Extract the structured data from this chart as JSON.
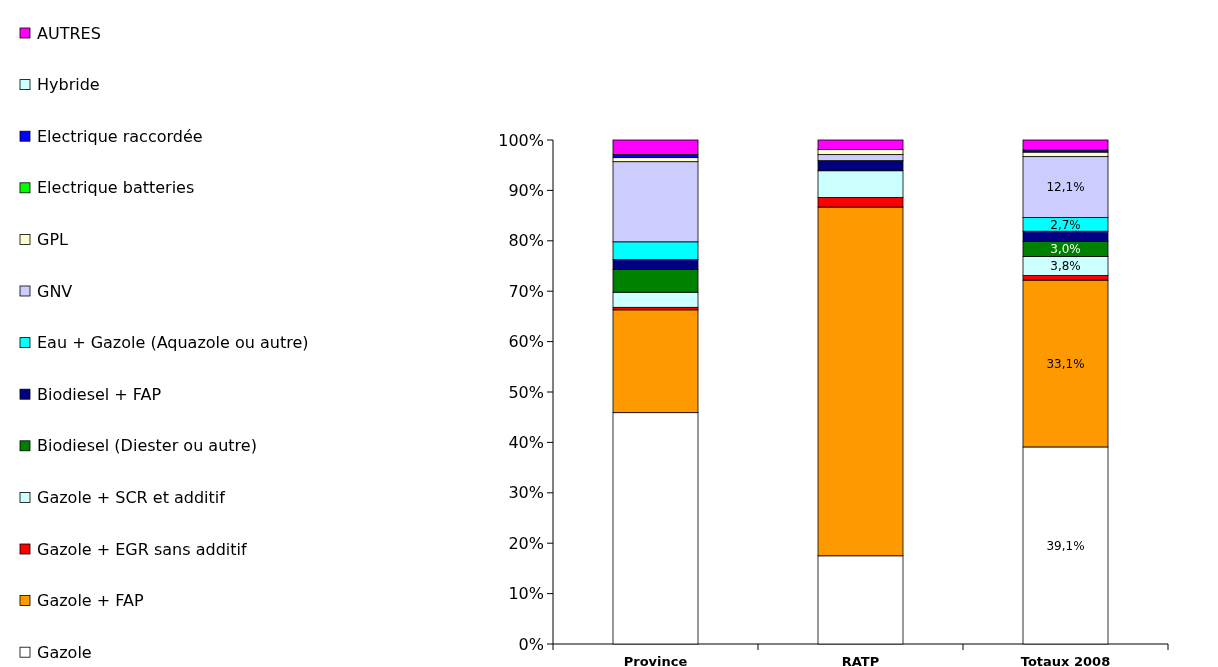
{
  "chart_data": {
    "type": "bar",
    "stacked": true,
    "categories": [
      "Province",
      "RATP",
      "Totaux 2008"
    ],
    "ylim": [
      0,
      100
    ],
    "yticks": [
      {
        "value": 0,
        "label": "0%"
      },
      {
        "value": 10,
        "label": "10%"
      },
      {
        "value": 20,
        "label": "20%"
      },
      {
        "value": 30,
        "label": "30%"
      },
      {
        "value": 40,
        "label": "40%"
      },
      {
        "value": 50,
        "label": "50%"
      },
      {
        "value": 60,
        "label": "60%"
      },
      {
        "value": 70,
        "label": "70%"
      },
      {
        "value": 80,
        "label": "80%"
      },
      {
        "value": 90,
        "label": "90%"
      },
      {
        "value": 100,
        "label": "100%"
      }
    ],
    "grid": false,
    "legend": "left",
    "series": [
      {
        "name": "Gazole",
        "color": "#ffffff",
        "values": [
          45.9,
          17.5,
          39.1
        ],
        "value_labels": [
          null,
          null,
          "39,1%"
        ]
      },
      {
        "name": "Gazole + FAP",
        "color": "#ff9900",
        "values": [
          20.4,
          69.2,
          33.1
        ],
        "value_labels": [
          null,
          null,
          "33,1%"
        ]
      },
      {
        "name": "Gazole + EGR sans additif",
        "color": "#ff0000",
        "values": [
          0.5,
          1.9,
          0.9
        ]
      },
      {
        "name": "Gazole + SCR et additif",
        "color": "#ccffff",
        "values": [
          3.0,
          5.3,
          3.8
        ],
        "value_labels": [
          null,
          null,
          "3,8%"
        ]
      },
      {
        "name": "Biodiesel (Diester ou autre)",
        "color": "#008000",
        "values": [
          4.5,
          0,
          3.0
        ],
        "value_labels": [
          null,
          null,
          "3,0%"
        ]
      },
      {
        "name": "Biodiesel + FAP",
        "color": "#000080",
        "values": [
          2.0,
          2.0,
          2.0
        ]
      },
      {
        "name": "Eau + Gazole (Aquazole ou autre)",
        "color": "#00ffff",
        "values": [
          3.5,
          0,
          2.7
        ],
        "value_labels": [
          null,
          null,
          "2,7%"
        ]
      },
      {
        "name": "GNV",
        "color": "#ccccff",
        "values": [
          15.9,
          1.2,
          12.1
        ],
        "value_labels": [
          null,
          null,
          "12,1%"
        ]
      },
      {
        "name": "GPL",
        "color": "#ffffcc",
        "values": [
          0.8,
          1.0,
          0.9
        ]
      },
      {
        "name": "Electrique batteries",
        "color": "#00ff00",
        "values": [
          null,
          0,
          null
        ]
      },
      {
        "name": "Electrique raccordée",
        "color": "#0000ff",
        "values": [
          0.6,
          0,
          0.4
        ]
      },
      {
        "name": "Hybride",
        "color": "#ccffff",
        "values": [
          null,
          0,
          null
        ]
      },
      {
        "name": "AUTRES",
        "color": "#ff00ff",
        "values": [
          2.9,
          1.9,
          2.0
        ]
      }
    ]
  }
}
